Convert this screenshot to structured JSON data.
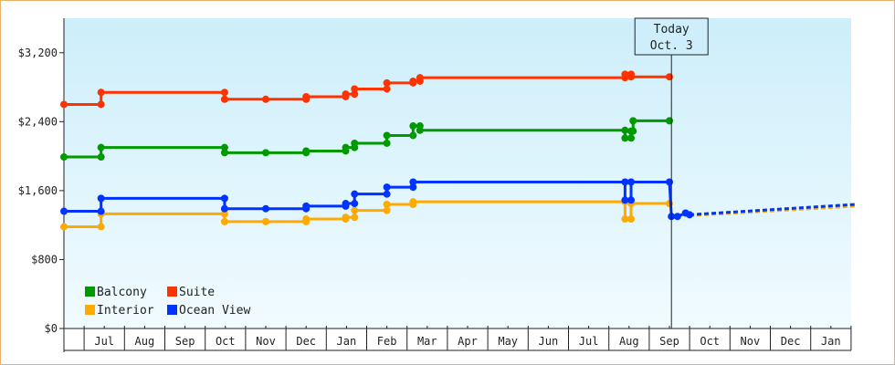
{
  "chart_data": {
    "type": "line",
    "title": "",
    "xlabel": "",
    "ylabel": "",
    "ylim": [
      0,
      3600
    ],
    "x_range": [
      "2024-06-01",
      "2025-02-01"
    ],
    "y_ticks": [
      0,
      800,
      1600,
      2400,
      3200
    ],
    "y_tick_labels": [
      "$0",
      "$800",
      "$1,600",
      "$2,400",
      "$3,200"
    ],
    "x_tick_labels": [
      "Jul",
      "Aug",
      "Sep",
      "Oct",
      "Nov",
      "Dec",
      "Jan",
      "Feb",
      "Mar",
      "Apr",
      "May",
      "Jun",
      "Jul",
      "Aug",
      "Sep",
      "Oct",
      "Nov",
      "Dec",
      "Jan"
    ],
    "grid": false,
    "background": "light blue gradient",
    "legend": {
      "placement": "bottom-left",
      "entries": [
        "Balcony",
        "Suite",
        "Interior",
        "Ocean View"
      ]
    },
    "annotation": {
      "line1": "Today",
      "line2": "Oct. 3",
      "month_index": 15.05
    },
    "series": [
      {
        "name": "Balcony",
        "color": "#009900",
        "x": [
          0,
          0.92,
          0.92,
          3.98,
          3.98,
          5,
          6,
          6,
          6.98,
          6.98,
          7.2,
          7.2,
          8,
          8,
          8.65,
          8.65,
          8.82,
          8.82,
          13.9,
          13.9,
          14.05,
          14.05,
          14.1,
          14.1,
          15
        ],
        "y": [
          1990,
          1990,
          2100,
          2100,
          2040,
          2040,
          2040,
          2060,
          2060,
          2100,
          2100,
          2150,
          2150,
          2240,
          2240,
          2350,
          2350,
          2300,
          2300,
          2210,
          2210,
          2290,
          2290,
          2410,
          2410
        ]
      },
      {
        "name": "Suite",
        "color": "#ff3300",
        "x": [
          0,
          0.92,
          0.92,
          3.98,
          3.98,
          5,
          6,
          6,
          6.98,
          6.98,
          7.2,
          7.2,
          8,
          8,
          8.65,
          8.65,
          8.82,
          8.82,
          13.9,
          13.9,
          14.05,
          14.05,
          15
        ],
        "y": [
          2600,
          2600,
          2740,
          2740,
          2660,
          2660,
          2660,
          2690,
          2690,
          2720,
          2720,
          2780,
          2780,
          2850,
          2850,
          2870,
          2870,
          2910,
          2910,
          2950,
          2950,
          2920,
          2920
        ]
      },
      {
        "name": "Interior",
        "color": "#ffaa00",
        "x": [
          0,
          0.92,
          0.92,
          3.98,
          3.98,
          5,
          6,
          6,
          6.98,
          6.98,
          7.2,
          7.2,
          8,
          8,
          8.65,
          8.65,
          13.9,
          13.9,
          14.05,
          14.05,
          15
        ],
        "y": [
          1180,
          1180,
          1330,
          1330,
          1240,
          1240,
          1240,
          1270,
          1270,
          1290,
          1290,
          1370,
          1370,
          1440,
          1440,
          1470,
          1470,
          1270,
          1270,
          1450,
          1450
        ]
      },
      {
        "name": "Ocean View",
        "color": "#0033ff",
        "x": [
          0,
          0.92,
          0.92,
          3.98,
          3.98,
          5,
          6,
          6,
          6.98,
          6.98,
          7.2,
          7.2,
          8,
          8,
          8.65,
          8.65,
          13.9,
          13.9,
          14.05,
          14.05,
          15,
          15.05,
          15.2,
          15.4,
          15.5
        ],
        "y": [
          1360,
          1360,
          1510,
          1510,
          1390,
          1390,
          1390,
          1420,
          1420,
          1450,
          1450,
          1560,
          1560,
          1640,
          1640,
          1700,
          1700,
          1490,
          1490,
          1700,
          1700,
          1300,
          1300,
          1340,
          1320
        ]
      }
    ],
    "forecast": [
      {
        "name": "Interior",
        "color": "#ffaa00",
        "x": [
          15.5,
          19.6
        ],
        "y": [
          1310,
          1420
        ]
      },
      {
        "name": "Ocean View",
        "color": "#0033ff",
        "x": [
          15.5,
          19.6
        ],
        "y": [
          1320,
          1440
        ]
      }
    ]
  }
}
